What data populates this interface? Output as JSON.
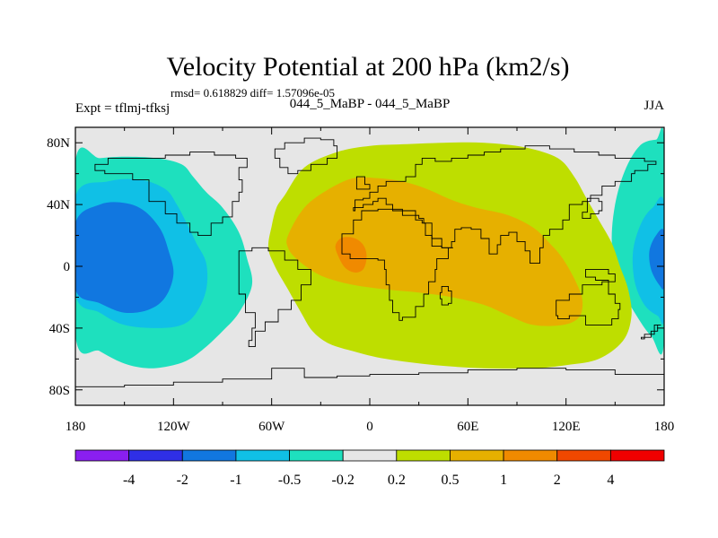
{
  "chart_data": {
    "type": "heatmap",
    "title": "Velocity Potential at 200 hPa (km2/s)",
    "stats_text": "rmsd= 0.618829 diff= 1.57096e-05",
    "subtitle_left": "Expt = tflmj-tfksj",
    "subtitle_center": "044_5_MaBP - 044_5_MaBP",
    "subtitle_right": "JJA",
    "x_range": [
      -180,
      180
    ],
    "y_range": [
      -90,
      90
    ],
    "x_ticks": [
      {
        "value": -180,
        "label": "180"
      },
      {
        "value": -120,
        "label": "120W"
      },
      {
        "value": -60,
        "label": "60W"
      },
      {
        "value": 0,
        "label": "0"
      },
      {
        "value": 60,
        "label": "60E"
      },
      {
        "value": 120,
        "label": "120E"
      },
      {
        "value": 180,
        "label": "180"
      }
    ],
    "y_ticks": [
      {
        "value": 80,
        "label": "80N"
      },
      {
        "value": 40,
        "label": "40N"
      },
      {
        "value": 0,
        "label": "0"
      },
      {
        "value": -40,
        "label": "40S"
      },
      {
        "value": -80,
        "label": "80S"
      }
    ],
    "colorbar": {
      "colors": [
        "#8a1ff0",
        "#2f2fe6",
        "#1177e0",
        "#10c0e6",
        "#1ee0be",
        "#e6e6e6",
        "#bede00",
        "#e6b000",
        "#f08a00",
        "#f04800",
        "#f00000"
      ],
      "labels": [
        "-4",
        "-2",
        "-1",
        "-0.5",
        "-0.2",
        "0.2",
        "0.5",
        "1",
        "2",
        "4"
      ]
    },
    "fields": [
      {
        "name": "west-pacific-negative",
        "level": -0.2,
        "lon": [
          -180,
          -165,
          -150,
          -130,
          -115,
          -108,
          -100,
          -90,
          -80,
          -75,
          -72,
          -80,
          -90,
          -100,
          -110,
          -120,
          -135,
          -150,
          -165,
          -180
        ],
        "lat": [
          68,
          70,
          71,
          70,
          66,
          58,
          48,
          38,
          22,
          5,
          -12,
          -30,
          -42,
          -52,
          -60,
          -64,
          -66,
          -63,
          -55,
          -45
        ]
      },
      {
        "name": "west-pacific-negative",
        "level": -0.5,
        "lon": [
          -180,
          -160,
          -140,
          -125,
          -118,
          -112,
          -106,
          -100,
          -100,
          -106,
          -115,
          -130,
          -150,
          -165,
          -180
        ],
        "lat": [
          45,
          55,
          56,
          50,
          40,
          28,
          15,
          2,
          -15,
          -30,
          -38,
          -40,
          -38,
          -30,
          -18
        ]
      },
      {
        "name": "west-pacific-negative",
        "level": -1,
        "lon": [
          -180,
          -165,
          -150,
          -138,
          -128,
          -123,
          -120,
          -125,
          -135,
          -150,
          -165,
          -180
        ],
        "lat": [
          28,
          40,
          41,
          36,
          24,
          10,
          -5,
          -20,
          -28,
          -30,
          -24,
          -15
        ]
      },
      {
        "name": "east-pacific-negative",
        "level": -0.2,
        "lon": [
          180,
          175,
          165,
          156,
          150,
          148,
          152,
          162,
          172,
          180
        ],
        "lat": [
          80,
          82,
          78,
          62,
          40,
          15,
          -10,
          -30,
          -45,
          -48
        ]
      },
      {
        "name": "east-pacific-negative",
        "level": -0.5,
        "lon": [
          180,
          173,
          166,
          161,
          162,
          168,
          176,
          180
        ],
        "lat": [
          40,
          38,
          28,
          10,
          -10,
          -25,
          -32,
          -32
        ]
      },
      {
        "name": "east-pacific-negative",
        "level": -1,
        "lon": [
          180,
          175,
          171,
          172,
          177,
          180
        ],
        "lat": [
          22,
          20,
          10,
          -2,
          -12,
          -12
        ]
      },
      {
        "name": "eurasia-positive",
        "level": 0.2,
        "lon": [
          -52,
          -40,
          -20,
          0,
          20,
          45,
          70,
          95,
          115,
          125,
          132,
          140,
          148,
          153,
          158,
          160,
          155,
          140,
          120,
          100,
          70,
          40,
          10,
          -10,
          -25,
          -35,
          -42,
          -50,
          -58,
          -62,
          -60,
          -57
        ],
        "lat": [
          46,
          64,
          74,
          78,
          79,
          80,
          80,
          77,
          70,
          58,
          45,
          30,
          15,
          0,
          -15,
          -32,
          -48,
          -60,
          -64,
          -66,
          -66,
          -64,
          -60,
          -55,
          -50,
          -42,
          -30,
          -15,
          0,
          12,
          26,
          38
        ]
      },
      {
        "name": "eurasia-positive",
        "level": 0.5,
        "lon": [
          -50,
          -40,
          -25,
          -10,
          5,
          20,
          35,
          50,
          65,
          85,
          100,
          110,
          118,
          126,
          130,
          128,
          118,
          100,
          85,
          70,
          50,
          30,
          10,
          -10,
          -25,
          -35,
          -45,
          -50
        ],
        "lat": [
          20,
          38,
          50,
          57,
          57,
          55,
          50,
          43,
          38,
          33,
          25,
          15,
          5,
          -10,
          -22,
          -33,
          -38,
          -38,
          -32,
          -25,
          -20,
          -17,
          -15,
          -12,
          -8,
          -3,
          5,
          12
        ]
      },
      {
        "name": "eurasia-positive",
        "level": 1,
        "lon": [
          -21,
          -18,
          -13,
          -7,
          -3,
          -2,
          -4,
          -9,
          -15,
          -19
        ],
        "lat": [
          13,
          18,
          19,
          17,
          12,
          5,
          -2,
          -4,
          -1,
          6
        ]
      }
    ],
    "continents": [
      {
        "name": "north-america",
        "lon": [
          -168,
          -160,
          -140,
          -125,
          -110,
          -95,
          -82,
          -75,
          -80,
          -78,
          -80,
          -84,
          -90,
          -97,
          -105,
          -110,
          -118,
          -125,
          -135,
          -145,
          -155,
          -162,
          -168
        ],
        "lat": [
          66,
          70,
          70,
          72,
          74,
          72,
          70,
          64,
          56,
          48,
          42,
          32,
          28,
          20,
          22,
          28,
          34,
          42,
          56,
          60,
          60,
          62,
          66
        ]
      },
      {
        "name": "greenland",
        "lon": [
          -58,
          -52,
          -40,
          -30,
          -22,
          -20,
          -26,
          -36,
          -44,
          -50,
          -55,
          -58
        ],
        "lat": [
          76,
          80,
          83,
          82,
          78,
          70,
          66,
          62,
          60,
          64,
          70,
          76
        ]
      },
      {
        "name": "south-america",
        "lon": [
          -80,
          -72,
          -62,
          -52,
          -44,
          -36,
          -36,
          -42,
          -48,
          -56,
          -64,
          -70,
          -74,
          -72,
          -70,
          -76,
          -80,
          -80
        ],
        "lat": [
          10,
          12,
          10,
          4,
          -2,
          -6,
          -12,
          -22,
          -28,
          -36,
          -42,
          -52,
          -48,
          -40,
          -30,
          -18,
          -6,
          10
        ]
      },
      {
        "name": "eurasia",
        "lon": [
          -10,
          -9,
          -4,
          0,
          5,
          10,
          22,
          28,
          32,
          40,
          50,
          60,
          70,
          80,
          95,
          110,
          125,
          140,
          150,
          160,
          168,
          175,
          170,
          162,
          160,
          150,
          142,
          135,
          130,
          122,
          122,
          118,
          110,
          106,
          104,
          98,
          95,
          90,
          85,
          80,
          78,
          73,
          68,
          62,
          56,
          52,
          50,
          44,
          38,
          34,
          32,
          28,
          22,
          14,
          10,
          5,
          2,
          -4,
          -10
        ],
        "lat": [
          36,
          43,
          44,
          48,
          52,
          55,
          58,
          66,
          70,
          68,
          70,
          72,
          74,
          76,
          78,
          76,
          74,
          72,
          70,
          70,
          68,
          66,
          62,
          60,
          55,
          52,
          46,
          42,
          40,
          38,
          30,
          24,
          20,
          12,
          2,
          10,
          16,
          22,
          20,
          14,
          8,
          18,
          24,
          25,
          24,
          16,
          12,
          13,
          20,
          28,
          30,
          36,
          36,
          40,
          44,
          42,
          40,
          38,
          36
        ]
      },
      {
        "name": "africa",
        "lon": [
          -17,
          -10,
          -5,
          5,
          10,
          20,
          30,
          33,
          38,
          44,
          51,
          48,
          41,
          40,
          36,
          33,
          28,
          20,
          18,
          14,
          12,
          10,
          9,
          5,
          -2,
          -8,
          -12,
          -17,
          -17
        ],
        "lat": [
          21,
          30,
          36,
          37,
          37,
          33,
          31,
          28,
          18,
          12,
          12,
          5,
          -2,
          -10,
          -18,
          -26,
          -33,
          -35,
          -30,
          -22,
          -12,
          -2,
          4,
          5,
          5,
          5,
          8,
          14,
          21
        ]
      },
      {
        "name": "australia",
        "lon": [
          114,
          122,
          130,
          136,
          142,
          146,
          150,
          153,
          152,
          148,
          140,
          132,
          122,
          115,
          114
        ],
        "lat": [
          -22,
          -18,
          -12,
          -12,
          -10,
          -18,
          -24,
          -28,
          -34,
          -38,
          -38,
          -32,
          -34,
          -32,
          -22
        ]
      },
      {
        "name": "antarctica",
        "lon": [
          -180,
          -150,
          -120,
          -90,
          -60,
          -40,
          -20,
          0,
          30,
          60,
          90,
          120,
          150,
          180,
          180,
          -180
        ],
        "lat": [
          -78,
          -77,
          -75,
          -73,
          -66,
          -72,
          -71,
          -70,
          -69,
          -67,
          -66,
          -67,
          -70,
          -78,
          -90,
          -90
        ]
      },
      {
        "name": "madagascar",
        "lon": [
          44,
          48,
          50,
          48,
          44,
          43,
          44
        ],
        "lat": [
          -25,
          -24,
          -16,
          -13,
          -17,
          -21,
          -25
        ]
      },
      {
        "name": "british-isles",
        "lon": [
          -8,
          -2,
          0,
          -3,
          -6,
          -8
        ],
        "lat": [
          50,
          50,
          53,
          58,
          58,
          50
        ]
      },
      {
        "name": "japan",
        "lon": [
          130,
          135,
          140,
          142,
          140,
          133,
          130
        ],
        "lat": [
          31,
          34,
          36,
          42,
          44,
          35,
          31
        ]
      },
      {
        "name": "new-zealand",
        "lon": [
          166,
          172,
          176,
          178,
          174,
          168,
          166
        ],
        "lat": [
          -46,
          -42,
          -38,
          -38,
          -44,
          -47,
          -46
        ]
      },
      {
        "name": "new-guinea",
        "lon": [
          132,
          140,
          146,
          150,
          146,
          138,
          132
        ],
        "lat": [
          -2,
          -2,
          -5,
          -10,
          -9,
          -7,
          -2
        ]
      }
    ]
  }
}
